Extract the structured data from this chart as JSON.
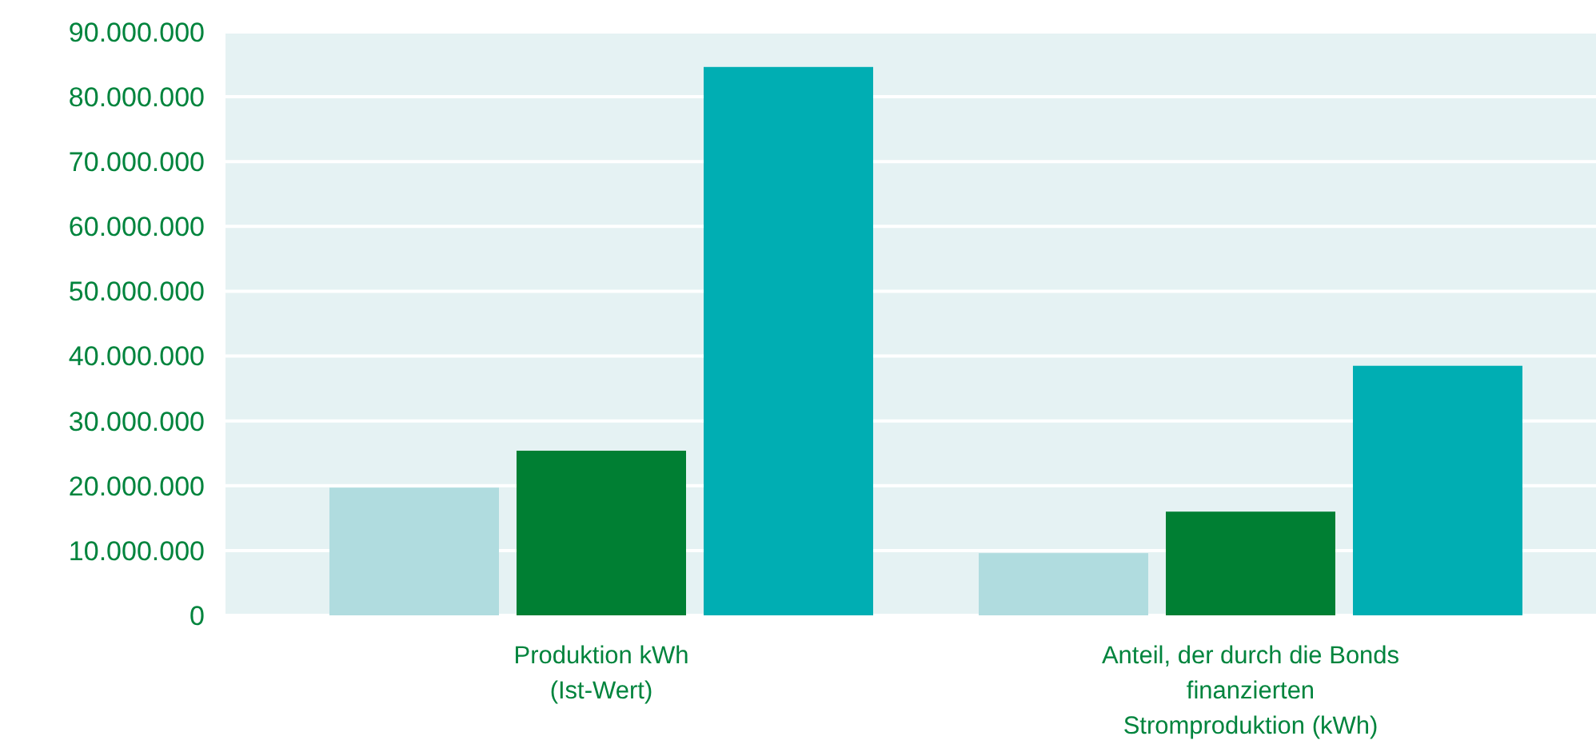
{
  "chart_data": {
    "type": "bar",
    "categories": [
      "Produktion kWh\n(Ist-Wert)",
      "Anteil, der durch die Bonds\nfinanzierten\nStromproduktion (kWh)"
    ],
    "series": [
      {
        "color": "#b0dcdf",
        "values": [
          19700000,
          9600000
        ]
      },
      {
        "color": "#007f33",
        "values": [
          25400000,
          16000000
        ]
      },
      {
        "color": "#00aeb3",
        "values": [
          84600000,
          38500000
        ]
      }
    ],
    "ylim": [
      0,
      90000000
    ],
    "yticks": [
      0,
      {
        "value": 10000000,
        "label": "10.000.000"
      },
      {
        "value": 20000000,
        "label": "20.000.000"
      },
      {
        "value": 30000000,
        "label": "30.000.000"
      },
      {
        "value": 40000000,
        "label": "40.000.000"
      },
      {
        "value": 50000000,
        "label": "50.000.000"
      },
      {
        "value": 60000000,
        "label": "60.000.000"
      },
      {
        "value": 70000000,
        "label": "70.000.000"
      },
      {
        "value": 80000000,
        "label": "80.000.000"
      },
      {
        "value": 90000000,
        "label": "90.000.000"
      }
    ],
    "grid": "y"
  }
}
